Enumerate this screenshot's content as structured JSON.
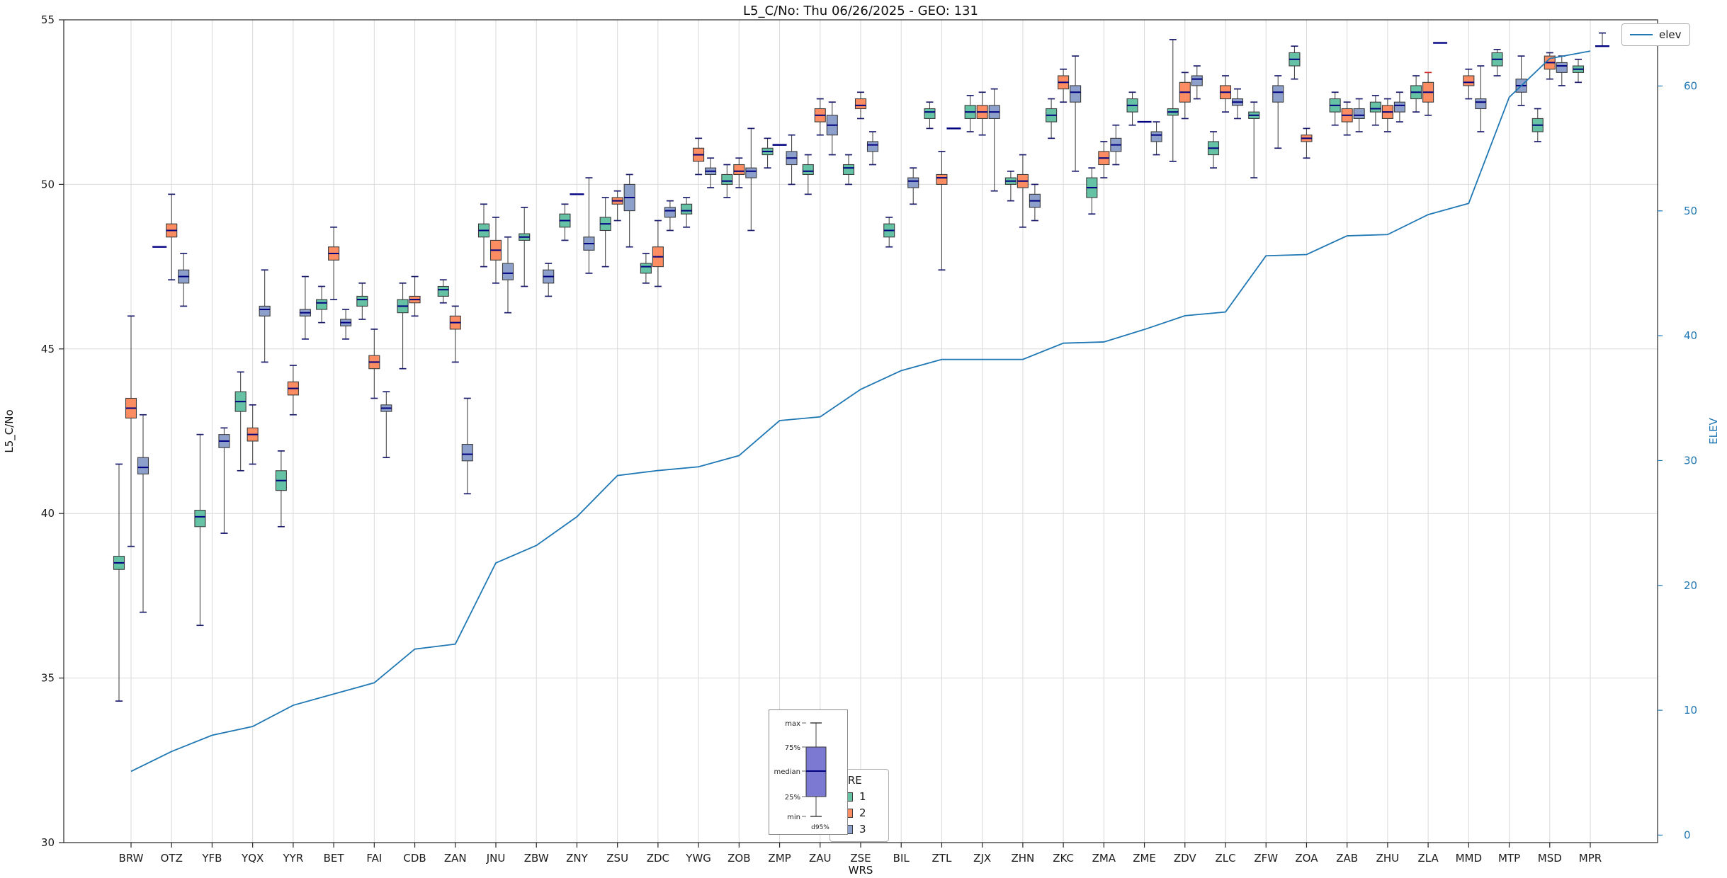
{
  "title": "L5_C/No: Thu 06/26/2025 - GEO: 131",
  "axes": {
    "left_label": "L5_C/No",
    "right_label": "ELEV",
    "x_label": "WRS",
    "left_ticks": [
      30,
      35,
      40,
      45,
      50,
      55
    ],
    "right_ticks": [
      0,
      10,
      20,
      30,
      40,
      50,
      60
    ],
    "left_ylim": [
      30,
      55
    ],
    "right_ylim": [
      -0.6,
      65.3
    ],
    "grid": true
  },
  "legend": {
    "elev_label": "elev",
    "wre_title": "WRE",
    "wre_entries": [
      {
        "label": "1",
        "color": "#66c2a5"
      },
      {
        "label": "2",
        "color": "#fc8d62"
      },
      {
        "label": "3",
        "color": "#8da0cb"
      }
    ]
  },
  "inset": {
    "max_label": "max",
    "q3_label": "75%",
    "median_label": "median",
    "q1_label": "25%",
    "min_label": "min",
    "whisker_label": "d95%",
    "box_color": "#7b79d2"
  },
  "chart_data": {
    "type": "boxplot+line",
    "categories": [
      "BRW",
      "OTZ",
      "YFB",
      "YQX",
      "YYR",
      "BET",
      "FAI",
      "CDB",
      "ZAN",
      "JNU",
      "ZBW",
      "ZNY",
      "ZSU",
      "ZDC",
      "YWG",
      "ZOB",
      "ZMP",
      "ZAU",
      "ZSE",
      "BIL",
      "ZTL",
      "ZJX",
      "ZHN",
      "ZKC",
      "ZMA",
      "ZME",
      "ZDV",
      "ZLC",
      "ZFW",
      "ZOA",
      "ZAB",
      "ZHU",
      "ZLA",
      "MMD",
      "MTP",
      "MSD",
      "MPR"
    ],
    "box_value_order": [
      "min",
      "q1",
      "median",
      "q3",
      "max"
    ],
    "series": [
      {
        "name": "1",
        "color": "#66c2a5",
        "boxes": [
          [
            34.3,
            38.3,
            38.5,
            38.7,
            41.5
          ],
          [
            48.1,
            48.1,
            48.1,
            48.1,
            48.1
          ],
          [
            36.6,
            39.6,
            39.9,
            40.1,
            42.4
          ],
          [
            41.3,
            43.1,
            43.4,
            43.7,
            44.3
          ],
          [
            39.6,
            40.7,
            41.0,
            41.3,
            41.9
          ],
          [
            45.8,
            46.2,
            46.4,
            46.5,
            46.9
          ],
          [
            45.9,
            46.3,
            46.5,
            46.6,
            47.0
          ],
          [
            44.4,
            46.1,
            46.3,
            46.5,
            47.0
          ],
          [
            46.4,
            46.6,
            46.8,
            46.9,
            47.1
          ],
          [
            47.5,
            48.4,
            48.6,
            48.8,
            49.4
          ],
          [
            46.9,
            48.3,
            48.4,
            48.5,
            49.3
          ],
          [
            48.3,
            48.7,
            48.9,
            49.1,
            49.4
          ],
          [
            47.5,
            48.6,
            48.8,
            49.0,
            49.6
          ],
          [
            47.0,
            47.3,
            47.5,
            47.6,
            47.9
          ],
          [
            48.7,
            49.1,
            49.2,
            49.4,
            49.6
          ],
          [
            49.6,
            50.0,
            50.1,
            50.3,
            50.6
          ],
          [
            50.5,
            50.9,
            51.0,
            51.1,
            51.4
          ],
          [
            49.7,
            50.3,
            50.4,
            50.6,
            50.9
          ],
          [
            50.0,
            50.3,
            50.5,
            50.6,
            50.9
          ],
          [
            48.1,
            48.4,
            48.6,
            48.8,
            49.0
          ],
          [
            51.7,
            52.0,
            52.2,
            52.3,
            52.5
          ],
          [
            51.6,
            52.0,
            52.2,
            52.4,
            52.7
          ],
          [
            49.5,
            50.0,
            50.1,
            50.2,
            50.4
          ],
          [
            51.4,
            51.9,
            52.1,
            52.3,
            52.6
          ],
          [
            49.1,
            49.6,
            49.9,
            50.2,
            50.5
          ],
          [
            51.8,
            52.2,
            52.4,
            52.6,
            52.8
          ],
          [
            50.7,
            52.1,
            52.2,
            52.3,
            54.4
          ],
          [
            50.5,
            50.9,
            51.1,
            51.3,
            51.6
          ],
          [
            50.2,
            52.0,
            52.1,
            52.2,
            52.5
          ],
          [
            53.2,
            53.6,
            53.8,
            54.0,
            54.2
          ],
          [
            51.8,
            52.2,
            52.4,
            52.6,
            52.8
          ],
          [
            51.8,
            52.2,
            52.3,
            52.5,
            52.7
          ],
          [
            52.2,
            52.6,
            52.8,
            53.0,
            53.3
          ],
          null,
          [
            53.3,
            53.6,
            53.8,
            54.0,
            54.1
          ],
          [
            51.3,
            51.6,
            51.8,
            52.0,
            52.3
          ],
          [
            53.1,
            53.4,
            53.5,
            53.6,
            53.8
          ]
        ]
      },
      {
        "name": "2",
        "color": "#fc8d62",
        "boxes": [
          [
            39.0,
            42.9,
            43.2,
            43.5,
            46.0
          ],
          [
            47.1,
            48.4,
            48.6,
            48.8,
            49.7
          ],
          null,
          [
            41.5,
            42.2,
            42.4,
            42.6,
            43.3
          ],
          [
            43.0,
            43.6,
            43.8,
            44.0,
            44.5
          ],
          [
            46.5,
            47.7,
            47.9,
            48.1,
            48.7
          ],
          [
            43.5,
            44.4,
            44.6,
            44.8,
            45.6
          ],
          [
            46.0,
            46.4,
            46.5,
            46.6,
            47.2
          ],
          [
            44.6,
            45.6,
            45.8,
            46.0,
            46.3
          ],
          [
            47.0,
            47.7,
            48.0,
            48.3,
            49.0
          ],
          null,
          [
            49.7,
            49.7,
            49.7,
            49.7,
            49.7
          ],
          [
            48.9,
            49.4,
            49.5,
            49.6,
            49.8
          ],
          [
            46.9,
            47.5,
            47.8,
            48.1,
            48.9
          ],
          [
            50.3,
            50.7,
            50.9,
            51.1,
            51.4
          ],
          [
            49.9,
            50.3,
            50.4,
            50.6,
            50.8
          ],
          [
            51.2,
            51.2,
            51.2,
            51.2,
            51.2
          ],
          [
            51.5,
            51.9,
            52.1,
            52.3,
            52.6
          ],
          [
            52.0,
            52.3,
            52.4,
            52.6,
            52.8
          ],
          null,
          [
            47.4,
            50.0,
            50.2,
            50.3,
            51.0
          ],
          [
            51.5,
            52.0,
            52.2,
            52.4,
            52.8
          ],
          [
            48.7,
            49.9,
            50.1,
            50.3,
            50.9
          ],
          [
            52.5,
            52.9,
            53.1,
            53.3,
            53.5
          ],
          [
            50.2,
            50.6,
            50.8,
            51.0,
            51.3
          ],
          [
            51.9,
            51.9,
            51.9,
            51.9,
            51.9
          ],
          [
            52.0,
            52.5,
            52.8,
            53.1,
            53.4
          ],
          [
            52.2,
            52.6,
            52.8,
            53.0,
            53.3
          ],
          null,
          [
            50.8,
            51.3,
            51.4,
            51.5,
            51.7
          ],
          [
            51.5,
            51.9,
            52.1,
            52.3,
            52.5
          ],
          [
            51.6,
            52.0,
            52.2,
            52.4,
            52.6
          ],
          [
            52.1,
            52.5,
            52.8,
            53.1,
            53.4
          ],
          [
            52.6,
            53.0,
            53.1,
            53.3,
            53.5
          ],
          null,
          [
            53.2,
            53.5,
            53.7,
            53.9,
            54.0
          ],
          null
        ]
      },
      {
        "name": "3",
        "color": "#8da0cb",
        "boxes": [
          [
            37.0,
            41.2,
            41.4,
            41.7,
            43.0
          ],
          [
            46.3,
            47.0,
            47.2,
            47.4,
            47.9
          ],
          [
            39.4,
            42.0,
            42.2,
            42.4,
            42.6
          ],
          [
            44.6,
            46.0,
            46.2,
            46.3,
            47.4
          ],
          [
            45.3,
            46.0,
            46.1,
            46.2,
            47.2
          ],
          [
            45.3,
            45.7,
            45.8,
            45.9,
            46.2
          ],
          [
            41.7,
            43.1,
            43.2,
            43.3,
            43.7
          ],
          null,
          [
            40.6,
            41.6,
            41.8,
            42.1,
            43.5
          ],
          [
            46.1,
            47.1,
            47.3,
            47.6,
            48.4
          ],
          [
            46.6,
            47.0,
            47.2,
            47.4,
            47.6
          ],
          [
            47.3,
            48.0,
            48.2,
            48.4,
            50.2
          ],
          [
            48.1,
            49.2,
            49.6,
            50.0,
            50.3
          ],
          [
            48.6,
            49.0,
            49.2,
            49.3,
            49.5
          ],
          [
            49.9,
            50.3,
            50.4,
            50.5,
            50.8
          ],
          [
            48.6,
            50.2,
            50.4,
            50.5,
            51.7
          ],
          [
            50.0,
            50.6,
            50.8,
            51.0,
            51.5
          ],
          [
            50.9,
            51.5,
            51.8,
            52.1,
            52.5
          ],
          [
            50.6,
            51.0,
            51.2,
            51.3,
            51.6
          ],
          [
            49.4,
            49.9,
            50.1,
            50.2,
            50.5
          ],
          [
            51.7,
            51.7,
            51.7,
            51.7,
            51.7
          ],
          [
            49.8,
            52.0,
            52.2,
            52.4,
            52.9
          ],
          [
            48.9,
            49.3,
            49.5,
            49.7,
            50.0
          ],
          [
            50.4,
            52.5,
            52.8,
            53.0,
            53.9
          ],
          [
            50.6,
            51.0,
            51.2,
            51.4,
            51.8
          ],
          [
            50.9,
            51.3,
            51.5,
            51.6,
            51.9
          ],
          [
            52.6,
            53.0,
            53.2,
            53.3,
            53.6
          ],
          [
            52.0,
            52.4,
            52.5,
            52.6,
            52.9
          ],
          [
            51.1,
            52.5,
            52.8,
            53.0,
            53.3
          ],
          null,
          [
            51.6,
            52.0,
            52.1,
            52.3,
            52.6
          ],
          [
            51.9,
            52.2,
            52.4,
            52.5,
            52.8
          ],
          [
            54.3,
            54.3,
            54.3,
            54.3,
            54.3
          ],
          [
            51.6,
            52.3,
            52.5,
            52.6,
            53.6
          ],
          [
            52.4,
            52.8,
            53.0,
            53.2,
            53.9
          ],
          [
            53.0,
            53.4,
            53.6,
            53.7,
            53.9
          ],
          [
            54.2,
            54.2,
            54.2,
            54.2,
            54.6
          ]
        ]
      }
    ],
    "elev": {
      "name": "elev",
      "color": "#1f77b4",
      "values": [
        5.1,
        6.7,
        8.0,
        8.7,
        10.4,
        11.3,
        12.2,
        14.9,
        15.3,
        21.8,
        23.2,
        25.5,
        28.8,
        29.2,
        29.5,
        30.4,
        33.2,
        33.5,
        35.7,
        37.2,
        38.1,
        38.1,
        38.1,
        39.4,
        39.5,
        40.5,
        41.6,
        41.9,
        46.4,
        46.5,
        48.0,
        48.1,
        49.7,
        50.6,
        59.1,
        62.2,
        62.8
      ]
    },
    "annotations": {
      "red_top_cap": {
        "category": "ZLA",
        "series": "2",
        "color": "#d62728"
      }
    }
  }
}
